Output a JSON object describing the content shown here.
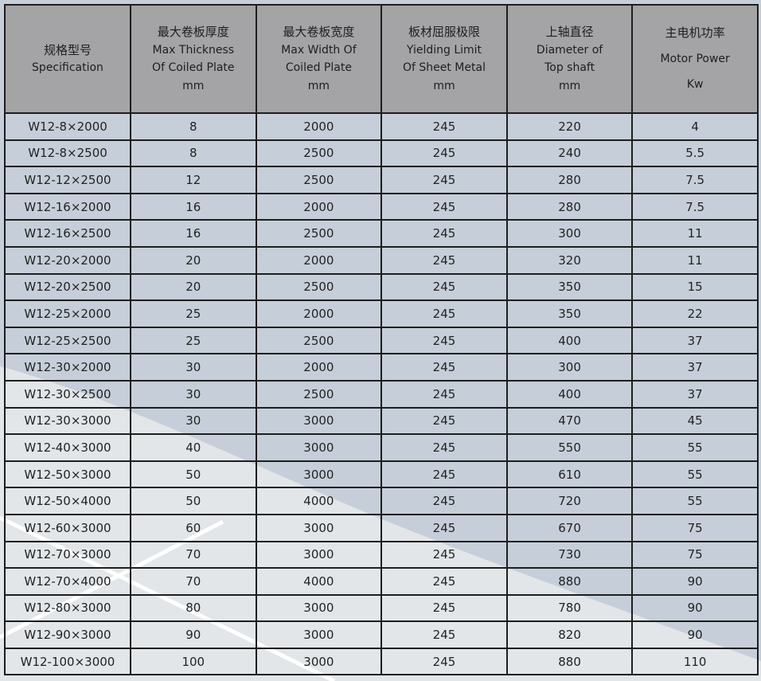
{
  "header": [
    {
      "cn": "规格型号",
      "en": [
        "Specification"
      ]
    },
    {
      "cn": "最大卷板厚度",
      "en": [
        "Max Thickness",
        "Of Coiled Plate",
        "mm"
      ]
    },
    {
      "cn": "最大卷板宽度",
      "en": [
        "Max Width  Of",
        "Coiled Plate",
        "mm"
      ]
    },
    {
      "cn": "板材屈服极限",
      "en": [
        "Yielding Limit",
        "Of  Sheet Metal",
        "mm"
      ]
    },
    {
      "cn": "上轴直径",
      "en": [
        "Diameter of",
        "Top shaft",
        "mm"
      ]
    },
    {
      "cn": "主电机功率",
      "en": [
        "Motor Power",
        "Kw"
      ]
    }
  ],
  "rows": [
    [
      "W12-8×2000",
      "8",
      "2000",
      "245",
      "220",
      "4"
    ],
    [
      "W12-8×2500",
      "8",
      "2500",
      "245",
      "240",
      "5.5"
    ],
    [
      "W12-12×2500",
      "12",
      "2500",
      "245",
      "280",
      "7.5"
    ],
    [
      "W12-16×2000",
      "16",
      "2000",
      "245",
      "280",
      "7.5"
    ],
    [
      "W12-16×2500",
      "16",
      "2500",
      "245",
      "300",
      "11"
    ],
    [
      "W12-20×2000",
      "20",
      "2000",
      "245",
      "320",
      "11"
    ],
    [
      "W12-20×2500",
      "20",
      "2500",
      "245",
      "350",
      "15"
    ],
    [
      "W12-25×2000",
      "25",
      "2000",
      "245",
      "350",
      "22"
    ],
    [
      "W12-25×2500",
      "25",
      "2500",
      "245",
      "400",
      "37"
    ],
    [
      "W12-30×2000",
      "30",
      "2000",
      "245",
      "300",
      "37"
    ],
    [
      "W12-30×2500",
      "30",
      "2500",
      "245",
      "400",
      "37"
    ],
    [
      "W12-30×3000",
      "30",
      "3000",
      "245",
      "470",
      "45"
    ],
    [
      "W12-40×3000",
      "40",
      "3000",
      "245",
      "550",
      "55"
    ],
    [
      "W12-50×3000",
      "50",
      "3000",
      "245",
      "610",
      "55"
    ],
    [
      "W12-50×4000",
      "50",
      "4000",
      "245",
      "720",
      "55"
    ],
    [
      "W12-60×3000",
      "60",
      "3000",
      "245",
      "670",
      "75"
    ],
    [
      "W12-70×3000",
      "70",
      "3000",
      "245",
      "730",
      "75"
    ],
    [
      "W12-70×4000",
      "70",
      "4000",
      "245",
      "880",
      "90"
    ],
    [
      "W12-80×3000",
      "80",
      "3000",
      "245",
      "780",
      "90"
    ],
    [
      "W12-90×3000",
      "90",
      "3000",
      "245",
      "820",
      "90"
    ],
    [
      "W12-100×3000",
      "100",
      "3000",
      "245",
      "880",
      "110"
    ]
  ],
  "colors": {
    "background": "#c6cfd9",
    "header": "#a4a4a6",
    "light_region": "#e2e6e9"
  }
}
